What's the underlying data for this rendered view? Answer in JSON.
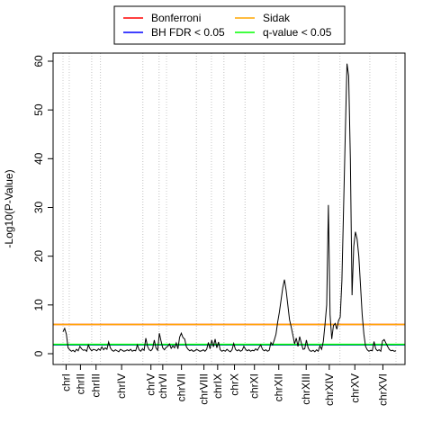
{
  "chart_data": {
    "type": "line",
    "title": "",
    "xlabel": "",
    "ylabel": "-Log10(P-Value)",
    "ylim": [
      0,
      62
    ],
    "y_ticks": [
      0,
      10,
      20,
      30,
      40,
      50,
      60
    ],
    "grid": "vertical dotted lines at chromosome boundaries",
    "legend_position": "top",
    "legend": [
      {
        "name": "Bonferroni",
        "color": "#ff0000"
      },
      {
        "name": "Sidak",
        "color": "#ffa500"
      },
      {
        "name": "BH FDR < 0.05",
        "color": "#0000ff"
      },
      {
        "name": "q-value < 0.05",
        "color": "#00ff00"
      }
    ],
    "thresholds": [
      {
        "name": "Bonferroni",
        "value": 6.0,
        "color": "#ff0000"
      },
      {
        "name": "Sidak",
        "value": 6.0,
        "color": "#ffa500"
      },
      {
        "name": "BH FDR < 0.05",
        "value": 1.8,
        "color": "#0000ff"
      },
      {
        "name": "q-value < 0.05",
        "value": 1.9,
        "color": "#00ff00"
      }
    ],
    "chromosomes": [
      {
        "name": "chrI",
        "length": 5
      },
      {
        "name": "chrII",
        "length": 18
      },
      {
        "name": "chrIII",
        "length": 7
      },
      {
        "name": "chrIV",
        "length": 34
      },
      {
        "name": "chrV",
        "length": 13
      },
      {
        "name": "chrVI",
        "length": 6
      },
      {
        "name": "chrVII",
        "length": 24
      },
      {
        "name": "chrVIII",
        "length": 12
      },
      {
        "name": "chrIX",
        "length": 10
      },
      {
        "name": "chrX",
        "length": 17
      },
      {
        "name": "chrXI",
        "length": 15
      },
      {
        "name": "chrXII",
        "length": 24
      },
      {
        "name": "chrXIII",
        "length": 20
      },
      {
        "name": "chrXIV",
        "length": 17
      },
      {
        "name": "chrXV",
        "length": 24
      },
      {
        "name": "chrXVI",
        "length": 21
      }
    ],
    "series": [
      {
        "color": "#000000",
        "points": [
          [
            0,
            4.5
          ],
          [
            1,
            5.2
          ],
          [
            2,
            4.0
          ],
          [
            3,
            1.2
          ],
          [
            4,
            0.8
          ],
          [
            5,
            0.5
          ],
          [
            6,
            0.7
          ],
          [
            7,
            0.4
          ],
          [
            8,
            0.9
          ],
          [
            9,
            0.6
          ],
          [
            10,
            1.5
          ],
          [
            11,
            1.0
          ],
          [
            12,
            0.7
          ],
          [
            13,
            0.8
          ],
          [
            14,
            0.5
          ],
          [
            15,
            1.8
          ],
          [
            16,
            1.0
          ],
          [
            17,
            0.6
          ],
          [
            18,
            0.9
          ],
          [
            19,
            0.8
          ],
          [
            20,
            0.6
          ],
          [
            21,
            1.0
          ],
          [
            22,
            0.7
          ],
          [
            23,
            1.4
          ],
          [
            24,
            0.8
          ],
          [
            25,
            1.2
          ],
          [
            26,
            0.9
          ],
          [
            27,
            2.4
          ],
          [
            28,
            1.2
          ],
          [
            29,
            0.7
          ],
          [
            30,
            0.5
          ],
          [
            31,
            0.8
          ],
          [
            32,
            0.6
          ],
          [
            33,
            0.4
          ],
          [
            34,
            0.9
          ],
          [
            35,
            0.7
          ],
          [
            36,
            0.5
          ],
          [
            37,
            0.6
          ],
          [
            38,
            0.8
          ],
          [
            39,
            0.6
          ],
          [
            40,
            0.9
          ],
          [
            41,
            0.5
          ],
          [
            42,
            0.7
          ],
          [
            43,
            0.6
          ],
          [
            44,
            1.8
          ],
          [
            45,
            0.8
          ],
          [
            46,
            0.5
          ],
          [
            47,
            1.0
          ],
          [
            48,
            0.7
          ],
          [
            49,
            3.2
          ],
          [
            50,
            1.5
          ],
          [
            51,
            0.8
          ],
          [
            52,
            0.6
          ],
          [
            53,
            1.0
          ],
          [
            54,
            2.8
          ],
          [
            55,
            1.2
          ],
          [
            56,
            0.7
          ],
          [
            57,
            4.2
          ],
          [
            58,
            2.6
          ],
          [
            59,
            1.2
          ],
          [
            60,
            0.8
          ],
          [
            61,
            1.3
          ],
          [
            62,
            1.5
          ],
          [
            63,
            2.0
          ],
          [
            64,
            1.1
          ],
          [
            65,
            1.6
          ],
          [
            66,
            1.2
          ],
          [
            67,
            2.2
          ],
          [
            68,
            1.0
          ],
          [
            69,
            3.4
          ],
          [
            70,
            4.2
          ],
          [
            71,
            3.3
          ],
          [
            72,
            3.0
          ],
          [
            73,
            1.4
          ],
          [
            74,
            0.9
          ],
          [
            75,
            0.6
          ],
          [
            76,
            0.8
          ],
          [
            77,
            0.5
          ],
          [
            78,
            0.6
          ],
          [
            79,
            0.9
          ],
          [
            80,
            0.7
          ],
          [
            81,
            0.5
          ],
          [
            82,
            0.6
          ],
          [
            83,
            0.8
          ],
          [
            84,
            0.5
          ],
          [
            85,
            0.9
          ],
          [
            86,
            2.3
          ],
          [
            87,
            1.0
          ],
          [
            88,
            2.8
          ],
          [
            89,
            1.4
          ],
          [
            90,
            3.0
          ],
          [
            91,
            1.2
          ],
          [
            92,
            2.4
          ],
          [
            93,
            0.8
          ],
          [
            94,
            0.5
          ],
          [
            95,
            0.7
          ],
          [
            96,
            0.5
          ],
          [
            97,
            0.9
          ],
          [
            98,
            0.6
          ],
          [
            99,
            0.4
          ],
          [
            100,
            0.8
          ],
          [
            101,
            2.1
          ],
          [
            102,
            0.9
          ],
          [
            103,
            0.6
          ],
          [
            104,
            0.8
          ],
          [
            105,
            0.5
          ],
          [
            106,
            0.7
          ],
          [
            107,
            1.5
          ],
          [
            108,
            0.9
          ],
          [
            109,
            0.6
          ],
          [
            110,
            0.8
          ],
          [
            111,
            0.5
          ],
          [
            112,
            0.7
          ],
          [
            113,
            0.6
          ],
          [
            114,
            1.0
          ],
          [
            115,
            0.7
          ],
          [
            116,
            1.3
          ],
          [
            117,
            1.8
          ],
          [
            118,
            0.9
          ],
          [
            119,
            0.6
          ],
          [
            120,
            0.8
          ],
          [
            121,
            0.5
          ],
          [
            122,
            0.7
          ],
          [
            123,
            2.3
          ],
          [
            124,
            1.8
          ],
          [
            125,
            2.8
          ],
          [
            126,
            4.0
          ],
          [
            127,
            6.5
          ],
          [
            128,
            8.5
          ],
          [
            129,
            11.0
          ],
          [
            130,
            13.5
          ],
          [
            131,
            15.2
          ],
          [
            132,
            13.0
          ],
          [
            133,
            10.0
          ],
          [
            134,
            7.0
          ],
          [
            135,
            5.5
          ],
          [
            136,
            3.8
          ],
          [
            137,
            2.0
          ],
          [
            138,
            3.2
          ],
          [
            139,
            1.5
          ],
          [
            140,
            3.5
          ],
          [
            141,
            2.2
          ],
          [
            142,
            0.9
          ],
          [
            143,
            1.0
          ],
          [
            144,
            2.8
          ],
          [
            145,
            1.2
          ],
          [
            146,
            0.6
          ],
          [
            147,
            0.5
          ],
          [
            148,
            0.7
          ],
          [
            149,
            0.4
          ],
          [
            150,
            0.8
          ],
          [
            151,
            0.5
          ],
          [
            152,
            1.6
          ],
          [
            153,
            0.9
          ],
          [
            154,
            2.5
          ],
          [
            155,
            6.0
          ],
          [
            156,
            10.0
          ],
          [
            157,
            30.5
          ],
          [
            158,
            8.0
          ],
          [
            159,
            3.0
          ],
          [
            160,
            5.8
          ],
          [
            161,
            6.2
          ],
          [
            162,
            5.0
          ],
          [
            163,
            6.8
          ],
          [
            164,
            7.5
          ],
          [
            165,
            15.0
          ],
          [
            166,
            30.0
          ],
          [
            167,
            45.0
          ],
          [
            168,
            59.5
          ],
          [
            169,
            57.0
          ],
          [
            170,
            40.0
          ],
          [
            171,
            12.0
          ],
          [
            172,
            22.0
          ],
          [
            173,
            25.0
          ],
          [
            174,
            23.5
          ],
          [
            175,
            20.0
          ],
          [
            176,
            14.0
          ],
          [
            177,
            8.0
          ],
          [
            178,
            4.0
          ],
          [
            179,
            1.5
          ],
          [
            180,
            0.8
          ],
          [
            181,
            0.5
          ],
          [
            182,
            0.7
          ],
          [
            183,
            0.6
          ],
          [
            184,
            2.5
          ],
          [
            185,
            1.0
          ],
          [
            186,
            0.6
          ],
          [
            187,
            0.8
          ],
          [
            188,
            0.5
          ],
          [
            189,
            2.6
          ],
          [
            190,
            2.9
          ],
          [
            191,
            2.2
          ],
          [
            192,
            1.5
          ],
          [
            193,
            0.9
          ],
          [
            194,
            0.6
          ],
          [
            195,
            0.7
          ],
          [
            196,
            0.5
          ],
          [
            197,
            0.6
          ]
        ]
      }
    ]
  }
}
